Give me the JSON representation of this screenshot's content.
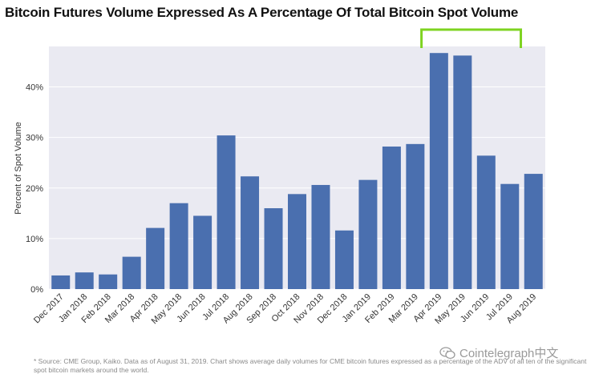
{
  "chart_data": {
    "type": "bar",
    "title": "Bitcoin Futures Volume Expressed As A Percentage Of Total Bitcoin Spot Volume",
    "xlabel": "",
    "ylabel": "Percent of Spot Volume",
    "ylim": [
      0,
      48
    ],
    "yticks": [
      0,
      10,
      20,
      30,
      40
    ],
    "ytick_labels": [
      "0%",
      "10%",
      "20%",
      "30%",
      "40%"
    ],
    "grid": true,
    "categories": [
      "Dec 2017",
      "Jan 2018",
      "Feb 2018",
      "Mar 2018",
      "Apr 2018",
      "May 2018",
      "Jun 2018",
      "Jul 2018",
      "Aug 2018",
      "Sep 2018",
      "Oct 2018",
      "Nov 2018",
      "Dec 2018",
      "Jan 2019",
      "Feb 2019",
      "Mar 2019",
      "Apr 2019",
      "May 2019",
      "Jun 2019",
      "Jul 2019",
      "Aug 2019"
    ],
    "values": [
      2.7,
      3.3,
      2.9,
      6.4,
      12.1,
      17.0,
      14.5,
      30.4,
      22.3,
      16.0,
      18.8,
      20.6,
      11.6,
      21.6,
      28.2,
      28.7,
      46.7,
      46.2,
      26.4,
      20.8,
      22.8
    ],
    "bar_color": "#4a6faf",
    "highlight": {
      "from": "Apr 2019",
      "to": "Jul 2019",
      "color": "#7ed321"
    }
  },
  "footnote": "* Source: CME Group, Kaiko. Data as of August 31, 2019. Chart shows average daily volumes for CME bitcoin futures expressed as a percentage of the ADV of all ten of the significant spot bitcoin markets around the world.",
  "watermark": {
    "text": "Cointelegraph中文",
    "icon": "wechat-icon"
  }
}
